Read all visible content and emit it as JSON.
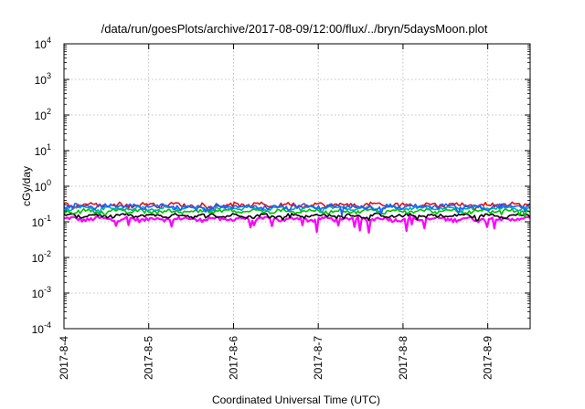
{
  "chart_data": {
    "type": "line",
    "title": "/data/run/goesPlots/archive/2017-08-09/12:00/flux/../bryn/5daysMoon.plot",
    "xlabel": "Coordinated Universal Time (UTC)",
    "ylabel": "cGy/day",
    "yscale": "log",
    "ylim": [
      0.0001,
      10000
    ],
    "xlim": [
      "2017-08-04",
      "2017-08-09 12:00"
    ],
    "grid": true,
    "x_ticks": [
      "2017-8-4",
      "2017-8-5",
      "2017-8-6",
      "2017-8-7",
      "2017-8-8",
      "2017-8-9"
    ],
    "y_ticks": [
      {
        "base": "10",
        "exp": "4"
      },
      {
        "base": "10",
        "exp": "3"
      },
      {
        "base": "10",
        "exp": "2"
      },
      {
        "base": "10",
        "exp": "1"
      },
      {
        "base": "10",
        "exp": "0"
      },
      {
        "base": "10",
        "exp": "-1"
      },
      {
        "base": "10",
        "exp": "-2"
      },
      {
        "base": "10",
        "exp": "-3"
      },
      {
        "base": "10",
        "exp": "-4"
      }
    ],
    "series": [
      {
        "color": "#ff00ff",
        "level": 0.12,
        "spread": 0.12,
        "dip_depth": 0.55
      },
      {
        "color": "#000000",
        "level": 0.15,
        "spread": 0.1,
        "dip_depth": 0.18
      },
      {
        "color": "#e01010",
        "level": 0.3,
        "spread": 0.12,
        "dip_depth": 0.25
      },
      {
        "color": "#00c000",
        "level": 0.2,
        "spread": 0.1,
        "dip_depth": 0.2
      },
      {
        "color": "#00b0b0",
        "level": 0.24,
        "spread": 0.1,
        "dip_depth": 0.2
      },
      {
        "color": "#1a60ff",
        "level": 0.27,
        "spread": 0.14,
        "dip_depth": 0.35
      }
    ]
  }
}
